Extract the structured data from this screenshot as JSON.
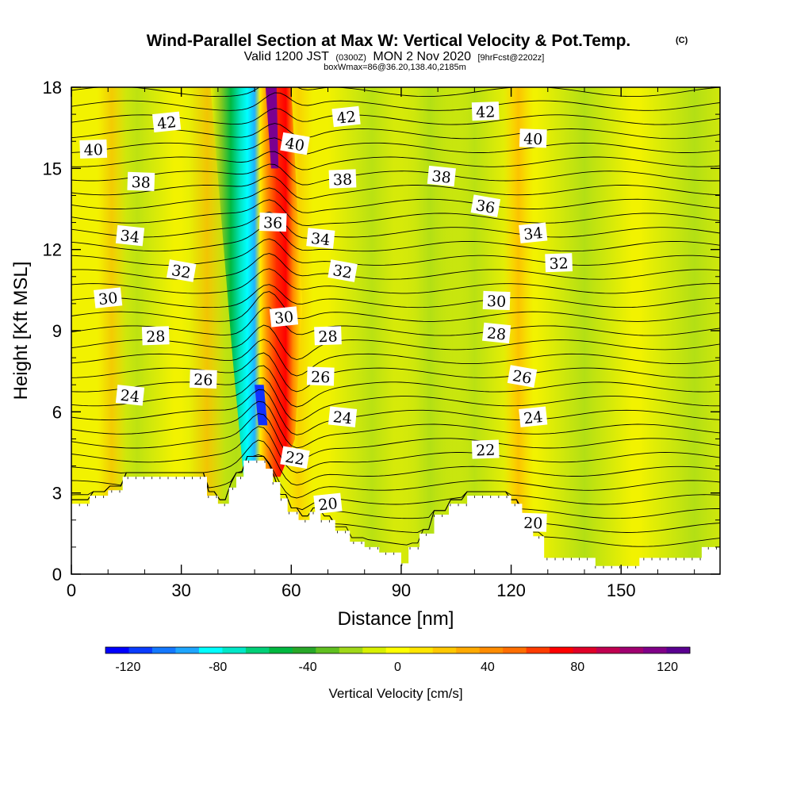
{
  "header": {
    "title": "Wind-Parallel Section at Max W: Vertical Velocity & Pot.Temp.",
    "copyright": "(C)",
    "valid_prefix": "Valid 1200 JST",
    "valid_utc": "(0300Z)",
    "valid_date": "MON 2 Nov 2020",
    "forecast": "[9hrFcst@2202z]",
    "box_info": "boxWmax=86@36.20,138.40,2185m"
  },
  "chart_data": {
    "type": "heatmap",
    "xlabel": "Distance [nm]",
    "ylabel": "Height [Kft MSL]",
    "xlim": [
      0,
      177
    ],
    "ylim": [
      0,
      18
    ],
    "xticks": [
      0,
      30,
      60,
      90,
      120,
      150
    ],
    "yticks": [
      0,
      3,
      6,
      9,
      12,
      15,
      18
    ],
    "colorbar": {
      "label": "Vertical Velocity [cm/s]",
      "range": [
        -130,
        130
      ],
      "ticks": [
        -120,
        -80,
        -40,
        0,
        40,
        80,
        120
      ],
      "colors": [
        "#0000ff",
        "#0a3cff",
        "#1478ff",
        "#1ea6ff",
        "#00ffff",
        "#00e8c8",
        "#00d078",
        "#00b840",
        "#28a828",
        "#60c020",
        "#a0d818",
        "#d8f000",
        "#ffff00",
        "#ffe600",
        "#ffc800",
        "#ffaa00",
        "#ff8c00",
        "#ff6e00",
        "#ff3c00",
        "#ff0000",
        "#e00028",
        "#c00050",
        "#a00070",
        "#800088",
        "#5a0090"
      ]
    },
    "theta_contour_labels": [
      {
        "value": "42",
        "x": 26,
        "y": 16.7
      },
      {
        "value": "40",
        "x": 6,
        "y": 15.7
      },
      {
        "value": "38",
        "x": 19,
        "y": 14.5
      },
      {
        "value": "34",
        "x": 16,
        "y": 12.5
      },
      {
        "value": "32",
        "x": 30,
        "y": 11.2
      },
      {
        "value": "30",
        "x": 10,
        "y": 10.2
      },
      {
        "value": "28",
        "x": 23,
        "y": 8.8
      },
      {
        "value": "26",
        "x": 36,
        "y": 7.2
      },
      {
        "value": "24",
        "x": 16,
        "y": 6.6
      },
      {
        "value": "40",
        "x": 61,
        "y": 15.9
      },
      {
        "value": "42",
        "x": 75,
        "y": 16.9
      },
      {
        "value": "38",
        "x": 74,
        "y": 14.6
      },
      {
        "value": "36",
        "x": 55,
        "y": 13.0
      },
      {
        "value": "34",
        "x": 68,
        "y": 12.4
      },
      {
        "value": "32",
        "x": 74,
        "y": 11.2
      },
      {
        "value": "30",
        "x": 58,
        "y": 9.5
      },
      {
        "value": "28",
        "x": 70,
        "y": 8.8
      },
      {
        "value": "26",
        "x": 68,
        "y": 7.3
      },
      {
        "value": "24",
        "x": 74,
        "y": 5.8
      },
      {
        "value": "22",
        "x": 61,
        "y": 4.3
      },
      {
        "value": "20",
        "x": 70,
        "y": 2.6
      },
      {
        "value": "42",
        "x": 113,
        "y": 17.1
      },
      {
        "value": "40",
        "x": 126,
        "y": 16.1
      },
      {
        "value": "38",
        "x": 101,
        "y": 14.7
      },
      {
        "value": "36",
        "x": 113,
        "y": 13.6
      },
      {
        "value": "34",
        "x": 126,
        "y": 12.6
      },
      {
        "value": "32",
        "x": 133,
        "y": 11.5
      },
      {
        "value": "30",
        "x": 116,
        "y": 10.1
      },
      {
        "value": "28",
        "x": 116,
        "y": 8.9
      },
      {
        "value": "26",
        "x": 123,
        "y": 7.3
      },
      {
        "value": "24",
        "x": 126,
        "y": 5.8
      },
      {
        "value": "22",
        "x": 113,
        "y": 4.6
      },
      {
        "value": "20",
        "x": 126,
        "y": 1.9
      }
    ]
  }
}
